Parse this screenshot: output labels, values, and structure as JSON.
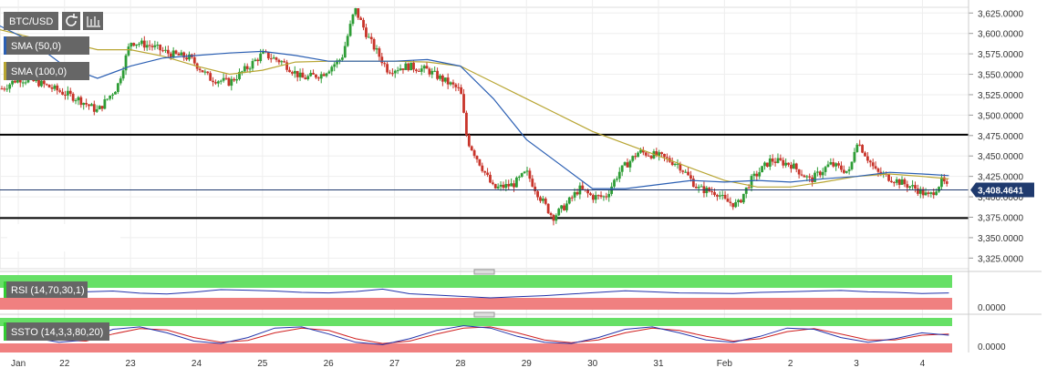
{
  "toolbar": {
    "symbol": "BTC/USD",
    "refresh_icon": "refresh-icon",
    "chart_type_icon": "bar-chart-icon"
  },
  "indicators": [
    {
      "label": "SMA (50,0)",
      "color": "#2b5fb3"
    },
    {
      "label": "SMA (100,0)",
      "color": "#b8a532"
    }
  ],
  "price_label": "3,408.4641",
  "panels": {
    "rsi": {
      "label": "RSI (14,70,30,1)",
      "axis_value": "0.0000"
    },
    "ssto": {
      "label": "SSTO (14,3,3,80,20)",
      "axis_value": "0.0000"
    }
  },
  "colors": {
    "bull": "#2e9d36",
    "bear": "#c8342a",
    "sma50": "#2b5fb3",
    "sma100": "#b8a532",
    "overbought_band": "#66e066",
    "oversold_band": "#f08080",
    "label_bg": "#666666"
  },
  "chart_data": {
    "type": "candlestick",
    "title": "BTC/USD",
    "y_ticks": [
      "3,325.0000",
      "3,350.0000",
      "3,375.0000",
      "3,400.0000",
      "3,425.0000",
      "3,450.0000",
      "3,475.0000",
      "3,500.0000",
      "3,525.0000",
      "3,550.0000",
      "3,575.0000",
      "3,600.0000",
      "3,625.0000"
    ],
    "y_values": [
      3325,
      3350,
      3375,
      3400,
      3425,
      3450,
      3475,
      3500,
      3525,
      3550,
      3575,
      3600,
      3625
    ],
    "ylim": [
      3312,
      3632
    ],
    "x_ticks": [
      "Jan",
      "22",
      "23",
      "24",
      "25",
      "26",
      "27",
      "28",
      "29",
      "30",
      "31",
      "Feb",
      "2",
      "3",
      "4"
    ],
    "x_tick_days": [
      0.3,
      1,
      2,
      3,
      4,
      5,
      6,
      7,
      8,
      9,
      10,
      11,
      12,
      13,
      14
    ],
    "day_range": [
      0.05,
      14.45
    ],
    "horizontal_levels": [
      3476,
      3374
    ],
    "current_price": 3408.4641,
    "price_series": [
      [
        0.0,
        3530
      ],
      [
        0.3,
        3545
      ],
      [
        0.6,
        3540
      ],
      [
        0.9,
        3530
      ],
      [
        1.2,
        3520
      ],
      [
        1.5,
        3505
      ],
      [
        1.8,
        3535
      ],
      [
        2.0,
        3590
      ],
      [
        2.3,
        3585
      ],
      [
        2.6,
        3575
      ],
      [
        2.9,
        3570
      ],
      [
        3.2,
        3545
      ],
      [
        3.5,
        3540
      ],
      [
        3.8,
        3560
      ],
      [
        4.0,
        3575
      ],
      [
        4.3,
        3565
      ],
      [
        4.6,
        3545
      ],
      [
        4.9,
        3550
      ],
      [
        5.2,
        3570
      ],
      [
        5.4,
        3630
      ],
      [
        5.6,
        3595
      ],
      [
        5.9,
        3555
      ],
      [
        6.2,
        3560
      ],
      [
        6.5,
        3555
      ],
      [
        6.8,
        3540
      ],
      [
        7.0,
        3530
      ],
      [
        7.1,
        3470
      ],
      [
        7.3,
        3440
      ],
      [
        7.5,
        3410
      ],
      [
        7.8,
        3415
      ],
      [
        8.0,
        3430
      ],
      [
        8.2,
        3400
      ],
      [
        8.4,
        3375
      ],
      [
        8.6,
        3390
      ],
      [
        8.8,
        3410
      ],
      [
        9.0,
        3400
      ],
      [
        9.2,
        3400
      ],
      [
        9.4,
        3430
      ],
      [
        9.7,
        3455
      ],
      [
        10.0,
        3450
      ],
      [
        10.3,
        3440
      ],
      [
        10.6,
        3410
      ],
      [
        10.9,
        3405
      ],
      [
        11.0,
        3395
      ],
      [
        11.2,
        3390
      ],
      [
        11.4,
        3420
      ],
      [
        11.7,
        3445
      ],
      [
        12.0,
        3440
      ],
      [
        12.3,
        3420
      ],
      [
        12.6,
        3440
      ],
      [
        12.9,
        3430
      ],
      [
        13.0,
        3470
      ],
      [
        13.3,
        3430
      ],
      [
        13.6,
        3420
      ],
      [
        13.9,
        3410
      ],
      [
        14.1,
        3400
      ],
      [
        14.3,
        3420
      ],
      [
        14.4,
        3408
      ]
    ],
    "sma50": [
      [
        0.0,
        3610
      ],
      [
        0.5,
        3590
      ],
      [
        1.0,
        3560
      ],
      [
        1.5,
        3545
      ],
      [
        2.0,
        3560
      ],
      [
        2.5,
        3570
      ],
      [
        3.0,
        3573
      ],
      [
        3.5,
        3576
      ],
      [
        4.0,
        3578
      ],
      [
        4.5,
        3573
      ],
      [
        5.0,
        3566
      ],
      [
        5.5,
        3566
      ],
      [
        6.0,
        3566
      ],
      [
        6.5,
        3568
      ],
      [
        7.0,
        3560
      ],
      [
        7.5,
        3520
      ],
      [
        8.0,
        3470
      ],
      [
        8.5,
        3440
      ],
      [
        9.0,
        3410
      ],
      [
        9.5,
        3410
      ],
      [
        10.0,
        3415
      ],
      [
        10.5,
        3420
      ],
      [
        11.0,
        3418
      ],
      [
        11.5,
        3420
      ],
      [
        12.0,
        3418
      ],
      [
        12.5,
        3422
      ],
      [
        13.0,
        3425
      ],
      [
        13.5,
        3430
      ],
      [
        14.0,
        3428
      ],
      [
        14.4,
        3426
      ]
    ],
    "sma100": [
      [
        0.0,
        3605
      ],
      [
        0.5,
        3595
      ],
      [
        1.0,
        3590
      ],
      [
        1.5,
        3580
      ],
      [
        2.0,
        3580
      ],
      [
        2.5,
        3572
      ],
      [
        3.0,
        3560
      ],
      [
        3.5,
        3550
      ],
      [
        4.0,
        3555
      ],
      [
        4.5,
        3565
      ],
      [
        5.0,
        3566
      ],
      [
        5.5,
        3566
      ],
      [
        6.0,
        3566
      ],
      [
        6.5,
        3565
      ],
      [
        7.0,
        3560
      ],
      [
        7.5,
        3540
      ],
      [
        8.0,
        3520
      ],
      [
        8.5,
        3500
      ],
      [
        9.0,
        3480
      ],
      [
        9.5,
        3465
      ],
      [
        10.0,
        3450
      ],
      [
        10.5,
        3435
      ],
      [
        11.0,
        3420
      ],
      [
        11.5,
        3412
      ],
      [
        12.0,
        3412
      ],
      [
        12.5,
        3418
      ],
      [
        13.0,
        3425
      ],
      [
        13.5,
        3428
      ],
      [
        14.0,
        3425
      ],
      [
        14.4,
        3422
      ]
    ],
    "rsi_series": [
      50,
      48,
      46,
      52,
      55,
      47,
      44,
      51,
      60,
      58,
      55,
      50,
      48,
      53,
      62,
      45,
      40,
      35,
      30,
      34,
      38,
      44,
      50,
      56,
      52,
      48,
      47,
      46,
      50,
      52,
      55,
      57,
      52,
      50,
      46,
      48
    ],
    "ssto_k": [
      70,
      40,
      20,
      30,
      75,
      85,
      60,
      25,
      15,
      40,
      80,
      85,
      55,
      20,
      10,
      35,
      70,
      90,
      80,
      45,
      20,
      15,
      40,
      75,
      85,
      60,
      30,
      20,
      45,
      80,
      75,
      40,
      20,
      35,
      60,
      50
    ],
    "ssto_d": [
      60,
      50,
      30,
      25,
      55,
      78,
      72,
      40,
      20,
      28,
      60,
      80,
      70,
      35,
      15,
      25,
      55,
      80,
      85,
      60,
      30,
      18,
      30,
      60,
      80,
      70,
      45,
      25,
      35,
      65,
      78,
      55,
      30,
      30,
      50,
      55
    ]
  }
}
